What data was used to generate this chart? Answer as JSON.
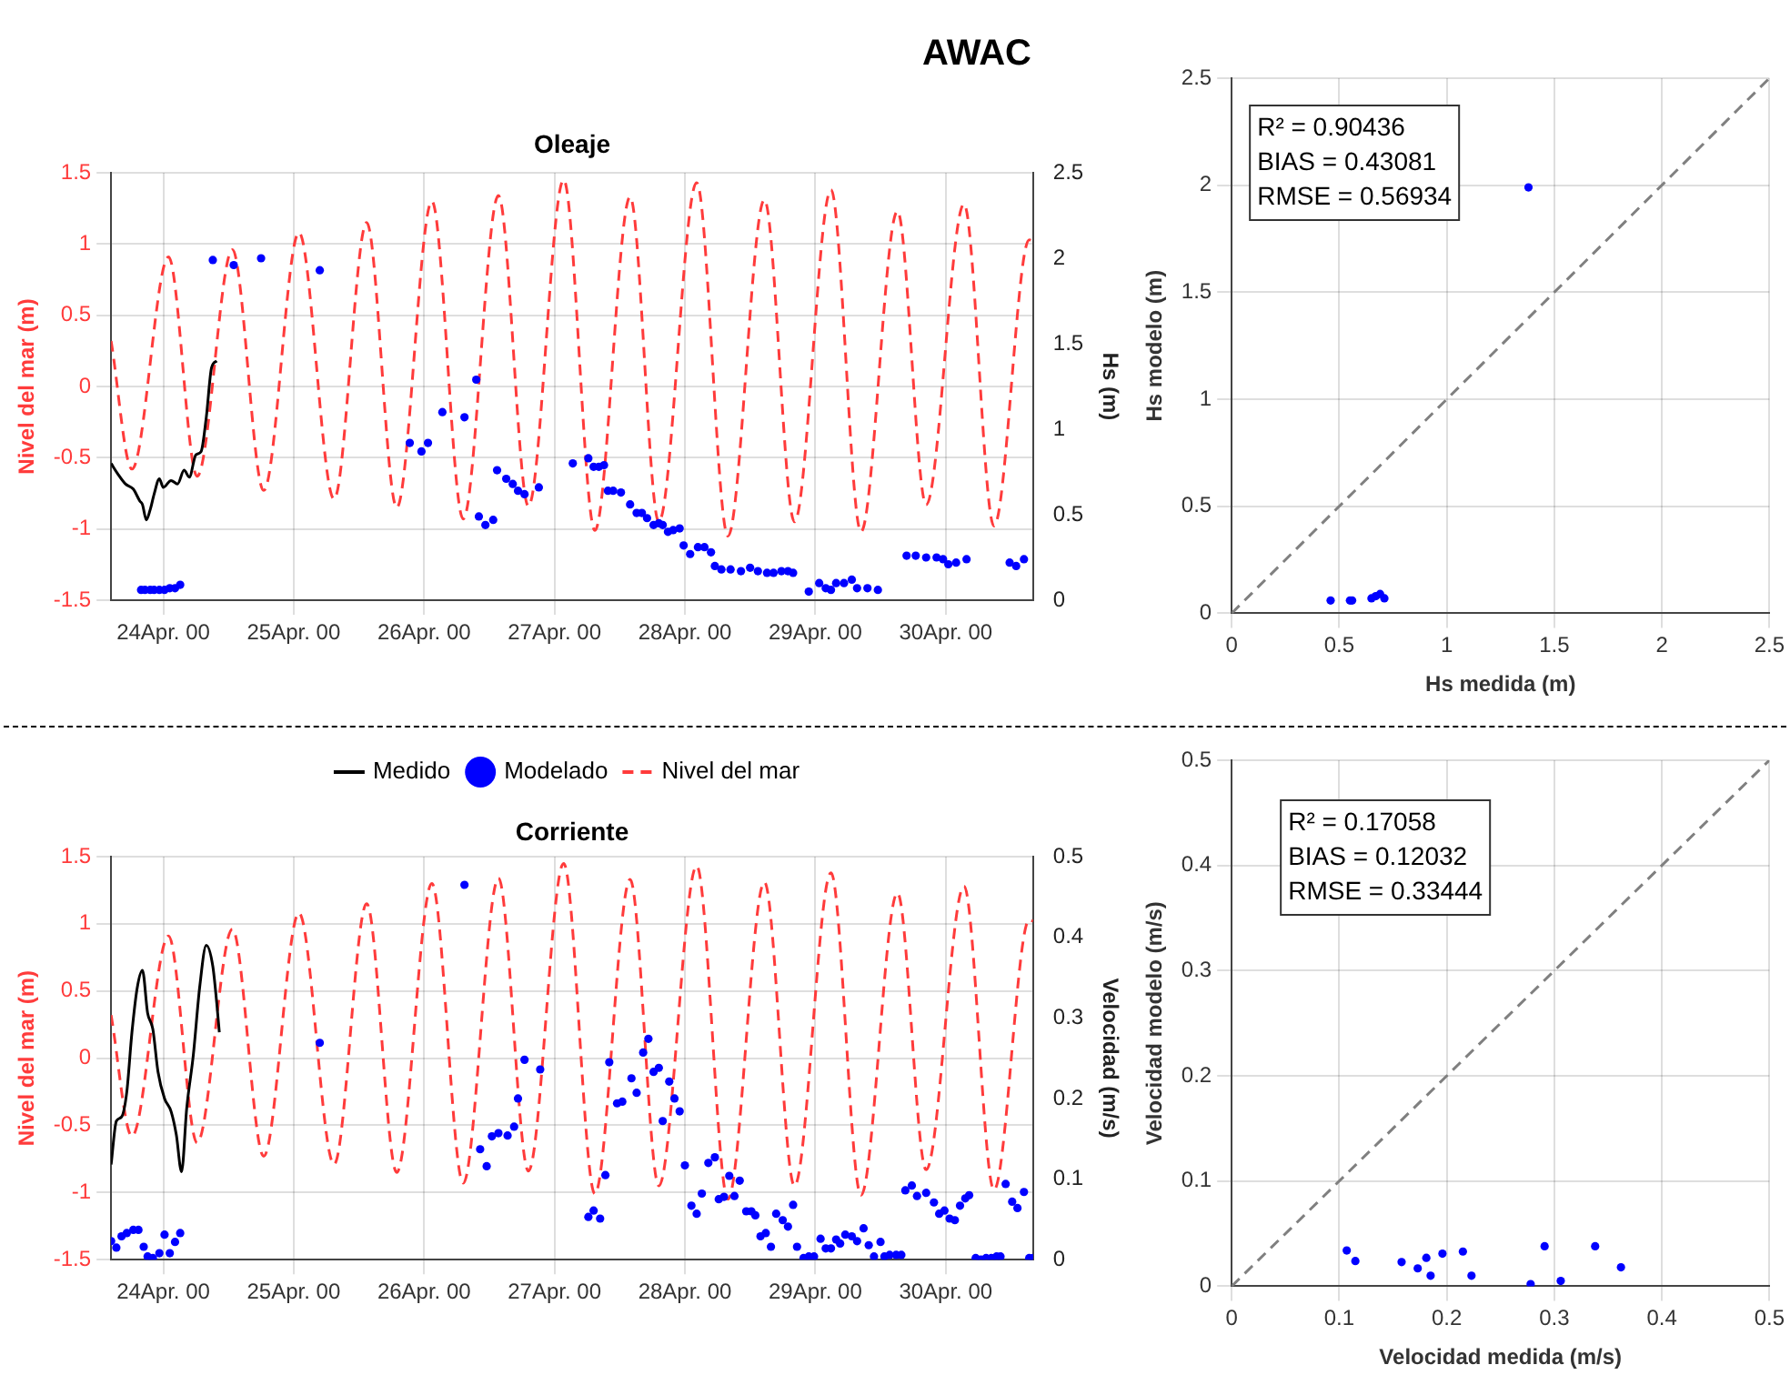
{
  "chart_data": [
    {
      "type": "line",
      "title": "Oleaje",
      "ylabel": "Nivel del mar (m)",
      "y2label": "Hs (m)",
      "xlim": [
        "--04-23T14:24",
        "--04-30T16:05"
      ],
      "xticks": [
        {
          "value": "--04-24",
          "label": "24Apr. 00"
        },
        {
          "value": "--04-25",
          "label": "25Apr. 00"
        },
        {
          "value": "--04-26",
          "label": "26Apr. 00"
        },
        {
          "value": "--04-27",
          "label": "27Apr. 00"
        },
        {
          "value": "--04-28",
          "label": "28Apr. 00"
        },
        {
          "value": "--04-29",
          "label": "29Apr. 00"
        },
        {
          "value": "--04-30",
          "label": "30Apr. 00"
        }
      ],
      "ylim": [
        -1.5,
        1.5
      ],
      "yticks": [
        -1.5,
        -1,
        -0.5,
        0,
        0.5,
        1,
        1.5
      ],
      "y2lim": [
        0,
        2.5
      ],
      "y2ticks": [
        0,
        0.5,
        1,
        1.5,
        2,
        2.5
      ],
      "grid": true,
      "legend": "bottom",
      "series": [
        {
          "name": "Medido",
          "axis": "y2",
          "color": "#000000",
          "x": [
            "--04-23T14:24",
            "--04-23T15:36",
            "--04-23T17:02",
            "--04-23T18:29",
            "--04-23T19:41",
            "--04-23T20:10",
            "--04-23T20:53",
            "--04-23T21:36",
            "--04-23T22:19",
            "--04-23T23:17",
            "--04-24T00:00",
            "--04-24T01:26",
            "--04-24T02:38",
            "--04-24T03:50",
            "--04-24T04:48",
            "--04-24T06:00",
            "--04-24T06:58",
            "--04-24T07:55",
            "--04-24T08:53",
            "--04-24T09:50"
          ],
          "values": [
            0.8,
            0.74,
            0.68,
            0.65,
            0.58,
            0.56,
            0.47,
            0.53,
            0.62,
            0.71,
            0.66,
            0.7,
            0.68,
            0.76,
            0.72,
            0.85,
            0.87,
            1.07,
            1.36,
            1.4
          ]
        },
        {
          "name": "Modelado",
          "type": "scatter",
          "axis": "y2",
          "color": "#0000ff",
          "marker": "circle",
          "x": [
            "--04-23T19:55",
            "--04-23T20:38",
            "--04-23T21:36",
            "--04-23T22:19",
            "--04-23T23:17",
            "--04-24T00:14",
            "--04-24T01:12",
            "--04-24T02:10",
            "--04-24T03:07",
            "--04-24T09:07",
            "--04-24T12:58",
            "--04-24T18:00",
            "--04-25T04:48",
            "--04-25T21:22",
            "--04-25T23:31",
            "--04-26T00:43",
            "--04-26T03:22",
            "--04-26T07:26",
            "--04-26T09:36",
            "--04-26T10:05",
            "--04-26T11:17",
            "--04-26T12:43",
            "--04-26T13:26",
            "--04-26T15:07",
            "--04-26T16:19",
            "--04-26T17:17",
            "--04-26T18:29",
            "--04-26T21:07",
            "--04-27T03:22",
            "--04-27T06:14",
            "--04-27T07:12",
            "--04-27T08:10",
            "--04-27T09:07",
            "--04-27T09:50",
            "--04-27T10:48",
            "--04-27T12:14",
            "--04-27T13:55",
            "--04-27T15:07",
            "--04-27T16:05",
            "--04-27T17:02",
            "--04-27T18:14",
            "--04-27T19:12",
            "--04-27T19:55",
            "--04-27T20:53",
            "--04-27T21:50",
            "--04-27T23:02",
            "--04-27T23:46",
            "--04-28T00:58",
            "--04-28T02:24",
            "--04-28T03:36",
            "--04-28T04:48",
            "--04-28T05:31",
            "--04-28T06:43",
            "--04-28T08:24",
            "--04-28T10:19",
            "--04-28T12:00",
            "--04-28T13:26",
            "--04-28T15:07",
            "--04-28T16:19",
            "--04-28T17:46",
            "--04-28T18:58",
            "--04-28T19:55",
            "--04-28T22:48",
            "--04-29T00:43",
            "--04-29T01:55",
            "--04-29T02:53",
            "--04-29T03:50",
            "--04-29T05:17",
            "--04-29T06:43",
            "--04-29T07:41",
            "--04-29T09:36",
            "--04-29T11:31",
            "--04-29T16:48",
            "--04-29T18:29",
            "--04-29T20:24",
            "--04-29T22:19",
            "--04-29T23:31",
            "--04-30T00:29",
            "--04-30T01:55",
            "--04-30T03:50",
            "--04-30T11:46",
            "--04-30T12:58",
            "--04-30T14:24"
          ],
          "values": [
            0.06,
            0.06,
            0.06,
            0.06,
            0.06,
            0.06,
            0.07,
            0.07,
            0.09,
            1.99,
            1.96,
            2.0,
            1.93,
            0.92,
            0.87,
            0.92,
            1.1,
            1.07,
            1.29,
            0.49,
            0.44,
            0.47,
            0.76,
            0.71,
            0.68,
            0.64,
            0.62,
            0.66,
            0.8,
            0.83,
            0.78,
            0.78,
            0.79,
            0.64,
            0.64,
            0.63,
            0.56,
            0.51,
            0.51,
            0.48,
            0.44,
            0.45,
            0.44,
            0.4,
            0.41,
            0.42,
            0.32,
            0.27,
            0.31,
            0.31,
            0.28,
            0.2,
            0.18,
            0.18,
            0.17,
            0.19,
            0.17,
            0.16,
            0.16,
            0.17,
            0.17,
            0.16,
            0.05,
            0.1,
            0.07,
            0.06,
            0.1,
            0.1,
            0.12,
            0.07,
            0.07,
            0.06,
            0.26,
            0.26,
            0.25,
            0.25,
            0.24,
            0.21,
            0.22,
            0.24,
            0.22,
            0.2,
            0.24
          ]
        },
        {
          "name": "Nivel del mar",
          "axis": "y",
          "color": "#ff3b3b",
          "line_style": "dashed",
          "x": [
            "--04-23T14:24",
            "--04-23T18:14",
            "--04-24T00:58",
            "--04-24T06:14",
            "--04-24T12:43",
            "--04-24T18:29",
            "--04-25T00:58",
            "--04-25T07:26",
            "--04-25T13:26",
            "--04-25T18:58",
            "--04-26T01:26",
            "--04-26T07:12",
            "--04-26T13:41",
            "--04-26T19:12",
            "--04-27T01:41",
            "--04-27T07:26",
            "--04-27T13:55",
            "--04-27T19:12",
            "--04-28T02:10",
            "--04-28T07:55",
            "--04-28T14:38",
            "--04-28T20:10",
            "--04-29T02:53",
            "--04-29T08:24",
            "--04-29T15:07",
            "--04-29T20:24",
            "--04-30T03:22",
            "--04-30T08:53",
            "--04-30T15:22",
            "--04-30T16:05"
          ],
          "values": [
            0.32,
            -0.58,
            0.91,
            -0.63,
            0.96,
            -0.73,
            1.08,
            -0.79,
            1.15,
            -0.85,
            1.3,
            -0.93,
            1.34,
            -0.84,
            1.45,
            -1.01,
            1.33,
            -0.95,
            1.43,
            -1.05,
            1.31,
            -0.95,
            1.38,
            -1.02,
            1.23,
            -0.83,
            1.28,
            -0.98,
            1.03,
            1.02
          ]
        }
      ]
    },
    {
      "type": "line",
      "title": "Corriente",
      "ylabel": "Nivel del mar (m)",
      "y2label": "Velocidad (m/s)",
      "xlim": [
        "--04-23T14:24",
        "--04-30T16:05"
      ],
      "xticks": [
        {
          "value": "--04-24",
          "label": "24Apr. 00"
        },
        {
          "value": "--04-25",
          "label": "25Apr. 00"
        },
        {
          "value": "--04-26",
          "label": "26Apr. 00"
        },
        {
          "value": "--04-27",
          "label": "27Apr. 00"
        },
        {
          "value": "--04-28",
          "label": "28Apr. 00"
        },
        {
          "value": "--04-29",
          "label": "29Apr. 00"
        },
        {
          "value": "--04-30",
          "label": "30Apr. 00"
        }
      ],
      "ylim": [
        -1.5,
        1.5
      ],
      "yticks": [
        -1.5,
        -1,
        -0.5,
        0,
        0.5,
        1,
        1.5
      ],
      "y2lim": [
        0,
        0.5
      ],
      "y2ticks": [
        0,
        0.1,
        0.2,
        0.3,
        0.4,
        0.5
      ],
      "grid": true,
      "series": [
        {
          "axis": "y2",
          "color": "#000000",
          "x": [
            "--04-23T14:24",
            "--04-23T15:22",
            "--04-23T16:19",
            "--04-23T17:17",
            "--04-23T18:14",
            "--04-23T19:12",
            "--04-23T20:10",
            "--04-23T21:07",
            "--04-23T22:05",
            "--04-23T23:02",
            "--04-24T00:14",
            "--04-24T01:26",
            "--04-24T02:24",
            "--04-24T03:22",
            "--04-24T04:19",
            "--04-24T05:31",
            "--04-24T06:43",
            "--04-24T07:55",
            "--04-24T09:07",
            "--04-24T09:50",
            "--04-24T10:19"
          ],
          "values": [
            0.118,
            0.172,
            0.177,
            0.208,
            0.282,
            0.337,
            0.359,
            0.306,
            0.286,
            0.233,
            0.2,
            0.184,
            0.155,
            0.109,
            0.188,
            0.253,
            0.339,
            0.39,
            0.364,
            0.319,
            0.282
          ]
        },
        {
          "type": "scatter",
          "axis": "y2",
          "color": "#0000ff",
          "marker": "circle",
          "x": [
            "--04-23T14:24",
            "--04-23T15:22",
            "--04-23T16:19",
            "--04-23T17:17",
            "--04-23T18:29",
            "--04-23T19:26",
            "--04-23T20:24",
            "--04-23T21:07",
            "--04-23T22:05",
            "--04-23T23:17",
            "--04-24T00:14",
            "--04-24T01:12",
            "--04-24T02:10",
            "--04-24T03:07",
            "--04-25T04:48",
            "--04-26T07:26",
            "--04-26T10:19",
            "--04-26T11:31",
            "--04-26T12:29",
            "--04-26T13:41",
            "--04-26T15:22",
            "--04-26T16:34",
            "--04-26T17:17",
            "--04-26T18:29",
            "--04-26T21:22",
            "--04-27T06:14",
            "--04-27T07:12",
            "--04-27T08:24",
            "--04-27T09:22",
            "--04-27T10:05",
            "--04-27T11:31",
            "--04-27T12:29",
            "--04-27T14:10",
            "--04-27T15:07",
            "--04-27T16:19",
            "--04-27T17:17",
            "--04-27T18:14",
            "--04-27T19:12",
            "--04-27T19:55",
            "--04-27T21:07",
            "--04-27T22:05",
            "--04-27T23:02",
            "--04-28T00:00",
            "--04-28T01:12",
            "--04-28T02:10",
            "--04-28T03:07",
            "--04-28T04:19",
            "--04-28T05:31",
            "--04-28T06:14",
            "--04-28T07:12",
            "--04-28T08:10",
            "--04-28T09:07",
            "--04-28T10:05",
            "--04-28T11:17",
            "--04-28T12:14",
            "--04-28T12:58",
            "--04-28T13:55",
            "--04-28T14:53",
            "--04-28T15:50",
            "--04-28T16:48",
            "--04-28T18:00",
            "--04-28T18:58",
            "--04-28T19:55",
            "--04-28T20:38",
            "--04-28T21:50",
            "--04-28T22:48",
            "--04-28T23:46",
            "--04-29T00:58",
            "--04-29T01:55",
            "--04-29T02:53",
            "--04-29T03:50",
            "--04-29T04:34",
            "--04-29T05:31",
            "--04-29T06:43",
            "--04-29T07:41",
            "--04-29T08:53",
            "--04-29T09:50",
            "--04-29T10:48",
            "--04-29T12:00",
            "--04-29T12:43",
            "--04-29T13:41",
            "--04-29T14:53",
            "--04-29T15:50",
            "--04-29T16:34",
            "--04-29T17:46",
            "--04-29T18:43",
            "--04-29T20:24",
            "--04-29T21:50",
            "--04-29T22:48",
            "--04-29T23:46",
            "--04-30T00:43",
            "--04-30T01:41",
            "--04-30T02:38",
            "--04-30T03:36",
            "--04-30T04:19",
            "--04-30T05:31",
            "--04-30T06:29",
            "--04-30T07:26",
            "--04-30T08:24",
            "--04-30T09:22",
            "--04-30T10:05",
            "--04-30T11:02",
            "--04-30T12:14",
            "--04-30T13:12",
            "--04-30T14:24",
            "--04-30T15:22",
            "--04-30T16:05"
          ],
          "values": [
            0.023,
            0.015,
            0.029,
            0.033,
            0.037,
            0.037,
            0.016,
            0.004,
            0.002,
            0.008,
            0.031,
            0.008,
            0.022,
            0.033,
            0.269,
            0.465,
            0.137,
            0.116,
            0.153,
            0.157,
            0.154,
            0.165,
            0.2,
            0.248,
            0.236,
            0.053,
            0.061,
            0.051,
            0.105,
            0.245,
            0.194,
            0.196,
            0.225,
            0.207,
            0.257,
            0.274,
            0.233,
            0.238,
            0.172,
            0.221,
            0.2,
            0.184,
            0.117,
            0.067,
            0.057,
            0.082,
            0.12,
            0.127,
            0.075,
            0.078,
            0.104,
            0.079,
            0.098,
            0.06,
            0.06,
            0.055,
            0.029,
            0.033,
            0.016,
            0.057,
            0.049,
            0.041,
            0.068,
            0.016,
            0.002,
            0.004,
            0.004,
            0.026,
            0.014,
            0.014,
            0.025,
            0.02,
            0.031,
            0.029,
            0.023,
            0.039,
            0.018,
            0.004,
            0.022,
            0.004,
            0.006,
            0.006,
            0.006,
            0.086,
            0.092,
            0.079,
            0.083,
            0.071,
            0.057,
            0.061,
            0.051,
            0.049,
            0.067,
            0.076,
            0.08,
            0.002,
            0.0,
            0.002,
            0.002,
            0.004,
            0.004,
            0.094,
            0.072,
            0.064,
            0.084,
            0.002,
            0.002
          ]
        },
        {
          "axis": "y",
          "color": "#ff3b3b",
          "line_style": "dashed",
          "x": [
            "--04-23T14:24",
            "--04-23T18:14",
            "--04-24T00:58",
            "--04-24T06:14",
            "--04-24T12:43",
            "--04-24T18:29",
            "--04-25T00:58",
            "--04-25T07:26",
            "--04-25T13:26",
            "--04-25T18:58",
            "--04-26T01:26",
            "--04-26T07:12",
            "--04-26T13:41",
            "--04-26T19:12",
            "--04-27T01:41",
            "--04-27T07:26",
            "--04-27T13:55",
            "--04-27T19:12",
            "--04-28T02:10",
            "--04-28T07:55",
            "--04-28T14:38",
            "--04-28T20:10",
            "--04-29T02:53",
            "--04-29T08:24",
            "--04-29T15:07",
            "--04-29T20:24",
            "--04-30T03:22",
            "--04-30T08:53",
            "--04-30T15:22",
            "--04-30T16:05"
          ],
          "values": [
            0.32,
            -0.58,
            0.91,
            -0.63,
            0.96,
            -0.73,
            1.08,
            -0.79,
            1.15,
            -0.85,
            1.3,
            -0.93,
            1.34,
            -0.84,
            1.45,
            -1.01,
            1.33,
            -0.95,
            1.43,
            -1.05,
            1.31,
            -0.95,
            1.38,
            -1.02,
            1.23,
            -0.83,
            1.28,
            -0.98,
            1.03,
            1.02
          ]
        }
      ]
    },
    {
      "type": "scatter",
      "title": "AWAC",
      "xlabel": "Hs medida (m)",
      "ylabel": "Hs modelo (m)",
      "xlim": [
        0,
        2.5
      ],
      "xticks": [
        0,
        0.5,
        1,
        1.5,
        2,
        2.5
      ],
      "ylim": [
        0,
        2.5
      ],
      "yticks": [
        0,
        0.5,
        1,
        1.5,
        2,
        2.5
      ],
      "grid": true,
      "annotations": [
        "R² = 0.90436",
        "BIAS = 0.43081",
        "RMSE = 0.56934"
      ],
      "series": [
        {
          "color": "#0000ff",
          "marker": "circle",
          "x": [
            0.46,
            0.55,
            0.56,
            0.65,
            0.67,
            0.69,
            0.71,
            1.38
          ],
          "values": [
            0.06,
            0.06,
            0.06,
            0.07,
            0.08,
            0.09,
            0.07,
            1.99
          ]
        },
        {
          "type": "line",
          "color": "#808080",
          "line_style": "dashed",
          "x": [
            0,
            2.5
          ],
          "values": [
            0,
            2.5
          ]
        }
      ]
    },
    {
      "type": "scatter",
      "xlabel": "Velocidad medida (m/s)",
      "ylabel": "Velocidad modelo (m/s)",
      "xlim": [
        0,
        0.5
      ],
      "xticks": [
        0,
        0.1,
        0.2,
        0.3,
        0.4,
        0.5
      ],
      "ylim": [
        0,
        0.5
      ],
      "yticks": [
        0,
        0.1,
        0.2,
        0.3,
        0.4,
        0.5
      ],
      "grid": true,
      "annotations": [
        "R² = 0.17058",
        "BIAS = 0.12032",
        "RMSE = 0.33444"
      ],
      "series": [
        {
          "color": "#0000ff",
          "marker": "circle",
          "x": [
            0.107,
            0.115,
            0.158,
            0.173,
            0.181,
            0.185,
            0.196,
            0.215,
            0.223,
            0.278,
            0.291,
            0.306,
            0.338,
            0.362
          ],
          "values": [
            0.034,
            0.024,
            0.023,
            0.017,
            0.027,
            0.01,
            0.031,
            0.033,
            0.01,
            0.002,
            0.038,
            0.005,
            0.038,
            0.018
          ]
        },
        {
          "type": "line",
          "color": "#808080",
          "line_style": "dashed",
          "x": [
            0,
            0.5
          ],
          "values": [
            0,
            0.5
          ]
        }
      ]
    }
  ]
}
